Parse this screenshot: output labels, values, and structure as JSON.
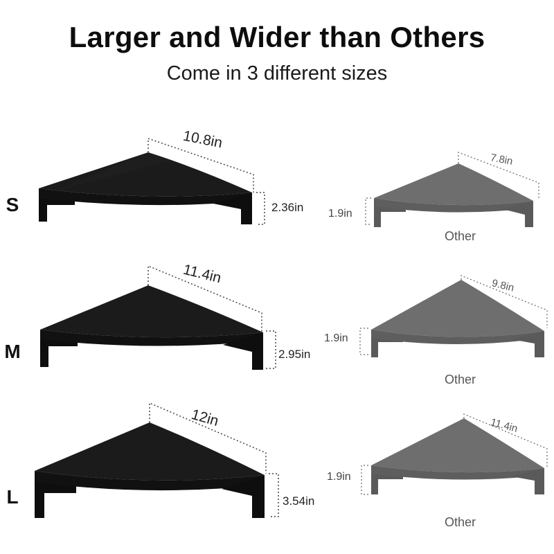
{
  "header": {
    "title": "Larger and Wider than Others",
    "subtitle": "Come in 3 different sizes"
  },
  "colors": {
    "ours_top": "#1b1b1b",
    "ours_front": "#0e0e0e",
    "other_top": "#6e6e6e",
    "other_front": "#5a5a5a",
    "dotted_guide": "#444444"
  },
  "sizes": [
    {
      "letter": "S",
      "ours": {
        "width": "10.8in",
        "height": "2.36in"
      },
      "other": {
        "width": "7.8in",
        "height": "1.9in",
        "label": "Other"
      }
    },
    {
      "letter": "M",
      "ours": {
        "width": "11.4in",
        "height": "2.95in"
      },
      "other": {
        "width": "9.8in",
        "height": "1.9in",
        "label": "Other"
      }
    },
    {
      "letter": "L",
      "ours": {
        "width": "12in",
        "height": "3.54in"
      },
      "other": {
        "width": "11.4in",
        "height": "1.9in",
        "label": "Other"
      }
    }
  ]
}
